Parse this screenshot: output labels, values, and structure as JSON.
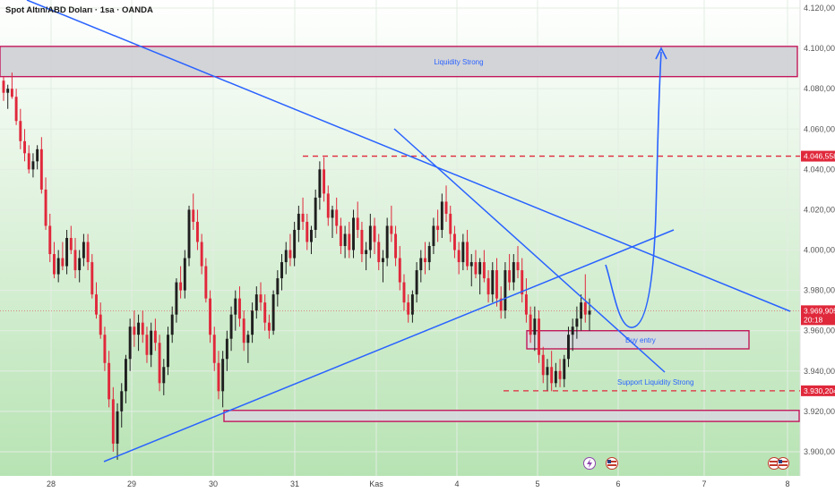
{
  "chart_data": {
    "type": "candlestick",
    "title": "Spot Altın/ABD Doları · 1sa · OANDA",
    "y_axis": {
      "ticks": [
        3900000,
        3920000,
        3940000,
        3960000,
        3980000,
        4000000,
        4020000,
        4040000,
        4060000,
        4080000,
        4100000,
        4120000
      ],
      "tick_labels": [
        "3.900,000",
        "3.920,000",
        "3.940,000",
        "3.960,000",
        "3.980,000",
        "4.000,000",
        "4.020,000",
        "4.040,000",
        "4.060,000",
        "4.080,000",
        "4.100,000",
        "4.120,000"
      ],
      "ylim": [
        3888000,
        4124000
      ]
    },
    "x_axis": {
      "tick_labels": [
        "28",
        "29",
        "30",
        "31",
        "Kas",
        "4",
        "5",
        "6",
        "7",
        "8"
      ]
    },
    "price_labels": [
      {
        "text": "4.046,558",
        "value": 4046558,
        "color": "#e0283b"
      },
      {
        "text": "3.969,905",
        "value": 3969905,
        "subtext": "20:18",
        "color": "#e0283b"
      },
      {
        "text": "3.930,204",
        "value": 3930204,
        "color": "#e0283b"
      }
    ],
    "annotations": {
      "liquidity_top": "Liquidity Strong",
      "buy_entry": "Buy entry",
      "support": "Support Liquidity Strong"
    },
    "zones": [
      {
        "name": "liquidity-strong-zone",
        "y_top": 4101000,
        "y_bottom": 4086000
      },
      {
        "name": "buy-entry-zone",
        "y_top": 3960000,
        "y_bottom": 3951000
      },
      {
        "name": "support-zone",
        "y_top": 3920500,
        "y_bottom": 3915000
      }
    ],
    "levels": [
      {
        "name": "resistance-dashed",
        "value": 4046558
      },
      {
        "name": "support-dashed",
        "value": 3930204
      }
    ],
    "colors": {
      "up": "#1f1f1f",
      "down": "#e0283b",
      "trendline": "#2962ff",
      "zone_border": "#c2185b"
    },
    "grid": true,
    "background": "green-gradient"
  }
}
